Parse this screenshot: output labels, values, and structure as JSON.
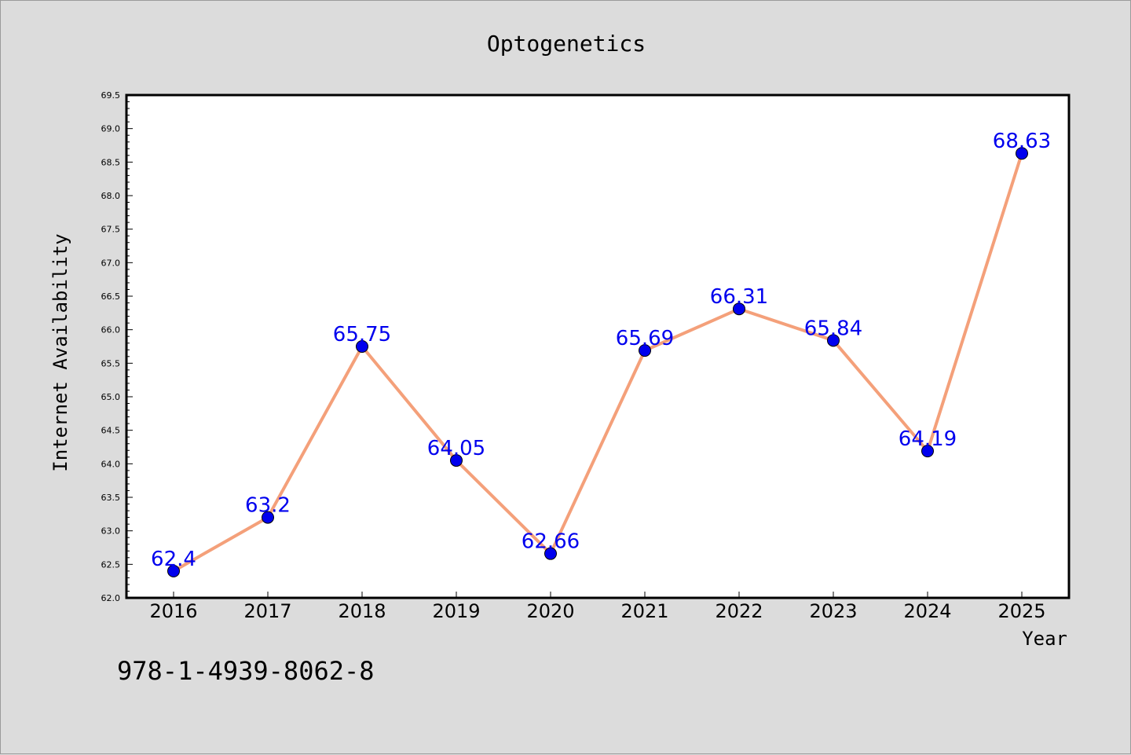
{
  "chart_data": {
    "type": "line",
    "title": "Optogenetics",
    "xlabel": "Year",
    "ylabel": "Internet Availability",
    "categories": [
      "2016",
      "2017",
      "2018",
      "2019",
      "2020",
      "2021",
      "2022",
      "2023",
      "2024",
      "2025"
    ],
    "values": [
      62.4,
      63.2,
      65.75,
      64.05,
      62.66,
      65.69,
      66.31,
      65.84,
      64.19,
      68.63
    ],
    "data_labels": [
      "62.4",
      "63.2",
      "65.75",
      "64.05",
      "62.66",
      "65.69",
      "66.31",
      "65.84",
      "64.19",
      "68.63"
    ],
    "ylim": [
      62.0,
      69.5
    ],
    "yticks": [
      "62.0",
      "62.5",
      "63.0",
      "63.5",
      "64.0",
      "64.5",
      "65.0",
      "65.5",
      "66.0",
      "66.5",
      "67.0",
      "67.5",
      "68.0",
      "68.5",
      "69.0",
      "69.5"
    ],
    "grid": false,
    "line_color": "#f4a07a",
    "marker_color": "#0000ee",
    "label_color": "#0000ee"
  },
  "annotation": "978-1-4939-8062-8"
}
